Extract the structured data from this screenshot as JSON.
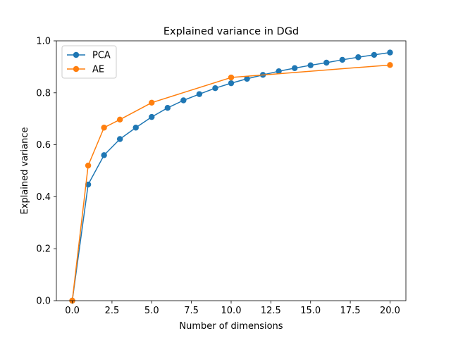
{
  "chart_data": {
    "type": "line",
    "title": "Explained variance in DGd",
    "xlabel": "Number of dimensions",
    "ylabel": "Explained variance",
    "xlim": [
      -1,
      21
    ],
    "ylim": [
      0,
      1.0
    ],
    "xticks": [
      0.0,
      2.5,
      5.0,
      7.5,
      10.0,
      12.5,
      15.0,
      17.5,
      20.0
    ],
    "xtick_labels": [
      "0.0",
      "2.5",
      "5.0",
      "7.5",
      "10.0",
      "12.5",
      "15.0",
      "17.5",
      "20.0"
    ],
    "yticks": [
      0.0,
      0.2,
      0.4,
      0.6,
      0.8,
      1.0
    ],
    "ytick_labels": [
      "0.0",
      "0.2",
      "0.4",
      "0.6",
      "0.8",
      "1.0"
    ],
    "grid": false,
    "legend_position": "top-left",
    "series": [
      {
        "name": "PCA",
        "color": "#1f77b4",
        "x": [
          0,
          1,
          2,
          3,
          4,
          5,
          6,
          7,
          8,
          9,
          10,
          11,
          12,
          13,
          14,
          15,
          16,
          17,
          18,
          19,
          20
        ],
        "y": [
          0.0,
          0.447,
          0.56,
          0.622,
          0.666,
          0.707,
          0.742,
          0.771,
          0.795,
          0.818,
          0.837,
          0.854,
          0.869,
          0.883,
          0.895,
          0.906,
          0.916,
          0.927,
          0.937,
          0.946,
          0.955
        ]
      },
      {
        "name": "AE",
        "color": "#ff7f0e",
        "x": [
          0,
          1,
          2,
          3,
          5,
          10,
          20
        ],
        "y": [
          0.0,
          0.52,
          0.666,
          0.697,
          0.762,
          0.859,
          0.907
        ]
      }
    ]
  }
}
